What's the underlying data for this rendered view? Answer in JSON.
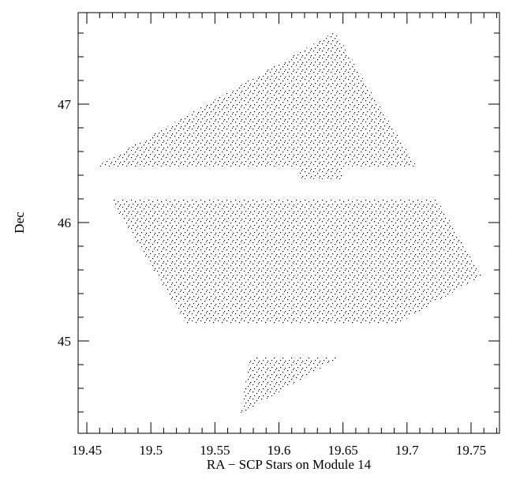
{
  "chart_data": {
    "type": "scatter",
    "xlabel": "RA − SCP Stars on Module 14",
    "ylabel": "Dec",
    "xlim": [
      19.4432,
      19.7722
    ],
    "ylim": [
      44.22,
      47.773
    ],
    "xticks": [
      19.45,
      19.5,
      19.55,
      19.6,
      19.65,
      19.7,
      19.75
    ],
    "yticks": [
      45,
      46,
      47
    ],
    "xminorticks": [
      19.46,
      19.47,
      19.48,
      19.49,
      19.51,
      19.52,
      19.53,
      19.54,
      19.56,
      19.57,
      19.58,
      19.59,
      19.61,
      19.62,
      19.63,
      19.64,
      19.66,
      19.67,
      19.68,
      19.69,
      19.71,
      19.72,
      19.73,
      19.74,
      19.76,
      19.77
    ],
    "yminorticks": [
      44.4,
      44.6,
      44.8,
      45.2,
      45.4,
      45.6,
      45.8,
      46.2,
      46.4,
      46.6,
      46.8,
      47.2,
      47.4,
      47.6
    ],
    "color": "#000000",
    "regions": [
      {
        "x": [
          19.457,
          19.644,
          19.708,
          19.65,
          19.65,
          19.615,
          19.615
        ],
        "y": [
          46.473,
          47.613,
          46.473,
          46.473,
          46.367,
          46.367,
          46.473
        ]
      },
      {
        "x": [
          19.468,
          19.724,
          19.758,
          19.693,
          19.527
        ],
        "y": [
          46.193,
          46.193,
          45.547,
          45.147,
          45.147
        ]
      },
      {
        "x": [
          19.577,
          19.647,
          19.57
        ],
        "y": [
          44.86,
          44.86,
          44.38
        ]
      }
    ]
  }
}
